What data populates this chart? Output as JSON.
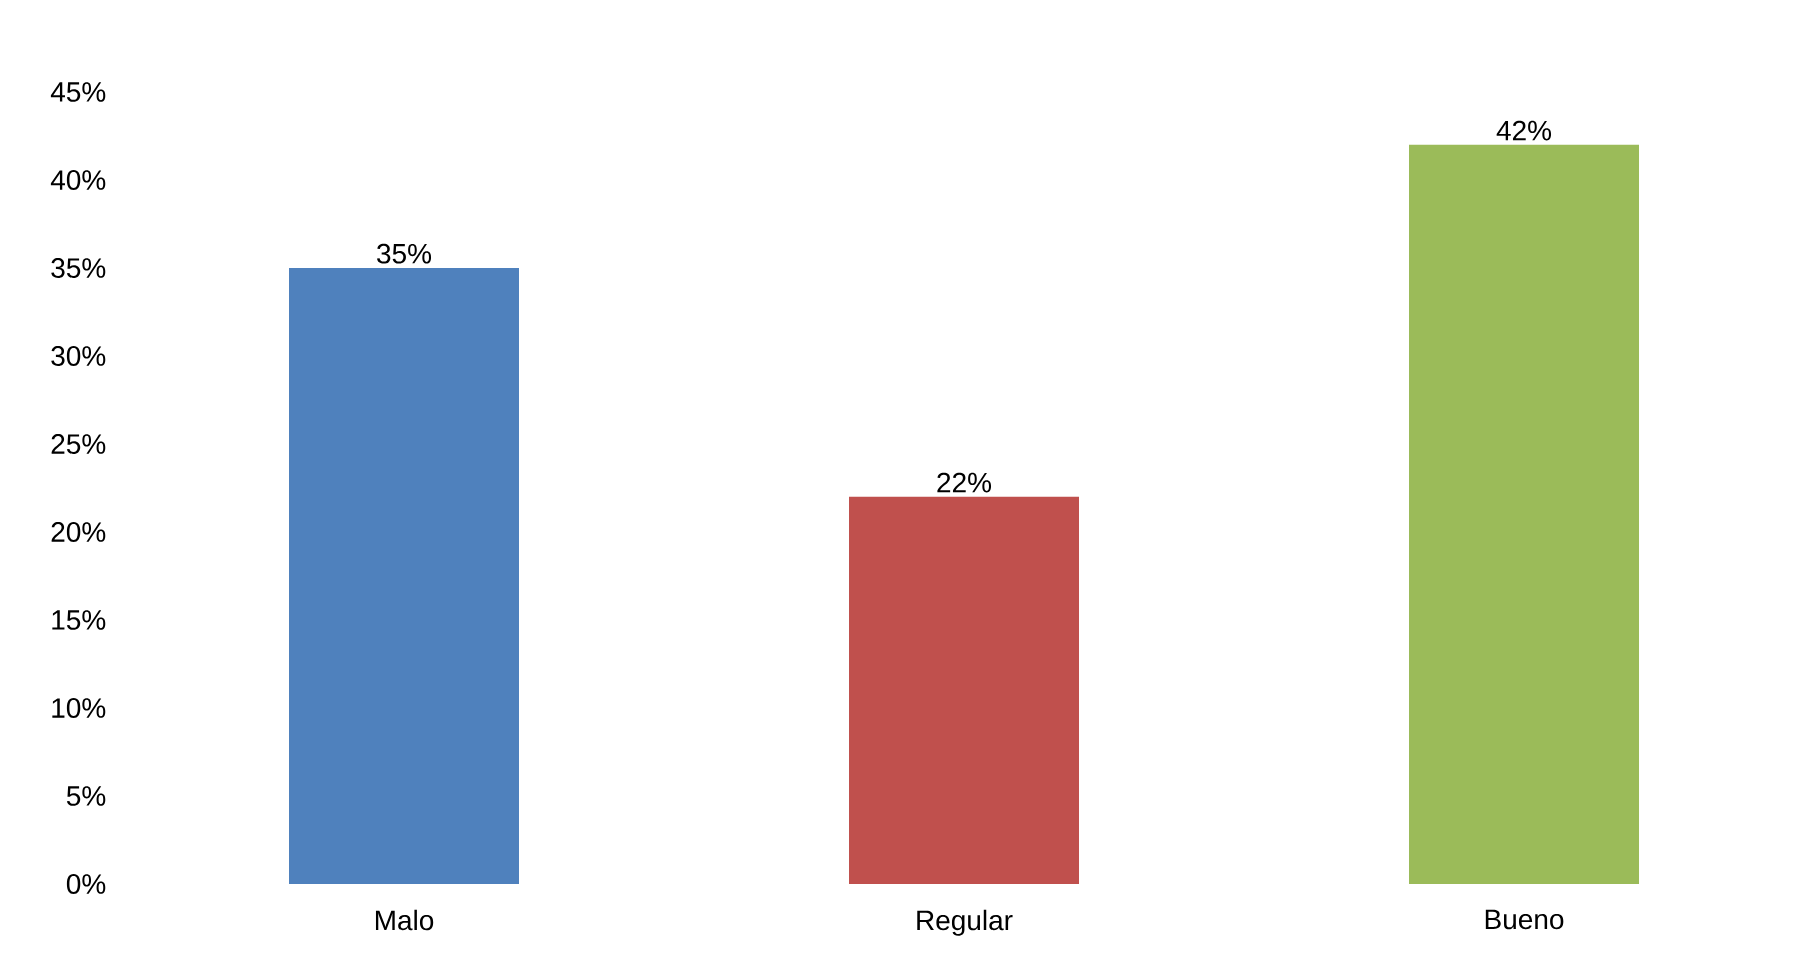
{
  "chart_data": {
    "type": "bar",
    "categories": [
      "Malo",
      "Regular",
      "Bueno"
    ],
    "values": [
      35,
      22,
      42
    ],
    "colors": [
      "#4f81bd",
      "#c0504d",
      "#9bbb59"
    ],
    "value_labels": [
      "35%",
      "22%",
      "42%"
    ],
    "ylim": [
      0,
      45
    ],
    "yticks": [
      {
        "value": 0,
        "label": "0%"
      },
      {
        "value": 5,
        "label": "5%"
      },
      {
        "value": 10,
        "label": "10%"
      },
      {
        "value": 15,
        "label": "15%"
      },
      {
        "value": 20,
        "label": "20%"
      },
      {
        "value": 25,
        "label": "25%"
      },
      {
        "value": 30,
        "label": "30%"
      },
      {
        "value": 35,
        "label": "35%"
      },
      {
        "value": 40,
        "label": "40%"
      },
      {
        "value": 45,
        "label": "45%"
      }
    ]
  }
}
